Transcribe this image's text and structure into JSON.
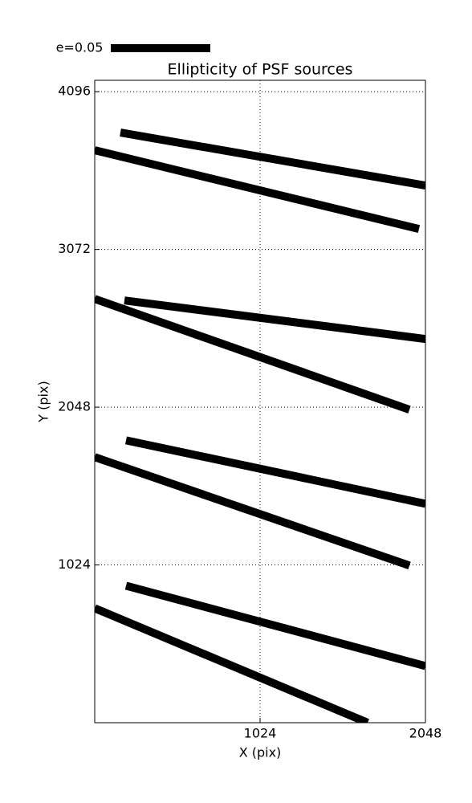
{
  "chart_data": {
    "type": "whisker",
    "title": "Ellipticity of PSF sources",
    "xlabel": "X (pix)",
    "ylabel": "Y (pix)",
    "legend_label": "e=0.05",
    "color": "#000000",
    "xlim": [
      0,
      2048
    ],
    "ylim": [
      0,
      4170
    ],
    "xticks": [
      1024,
      2048
    ],
    "yticks": [
      1024,
      2048,
      3072,
      4096
    ],
    "grid": true,
    "segments": [
      {
        "x": [
          159,
          2048
        ],
        "y": [
          3831,
          3487
        ]
      },
      {
        "x": [
          0,
          2008
        ],
        "y": [
          3716,
          3205
        ]
      },
      {
        "x": [
          184,
          2048
        ],
        "y": [
          2741,
          2491
        ]
      },
      {
        "x": [
          0,
          1949
        ],
        "y": [
          2751,
          2032
        ]
      },
      {
        "x": [
          194,
          2048
        ],
        "y": [
          1833,
          1421
        ]
      },
      {
        "x": [
          0,
          1949
        ],
        "y": [
          1724,
          1020
        ]
      },
      {
        "x": [
          194,
          2048
        ],
        "y": [
          889,
          368
        ]
      },
      {
        "x": [
          0,
          1690
        ],
        "y": [
          743,
          0
        ]
      }
    ]
  }
}
